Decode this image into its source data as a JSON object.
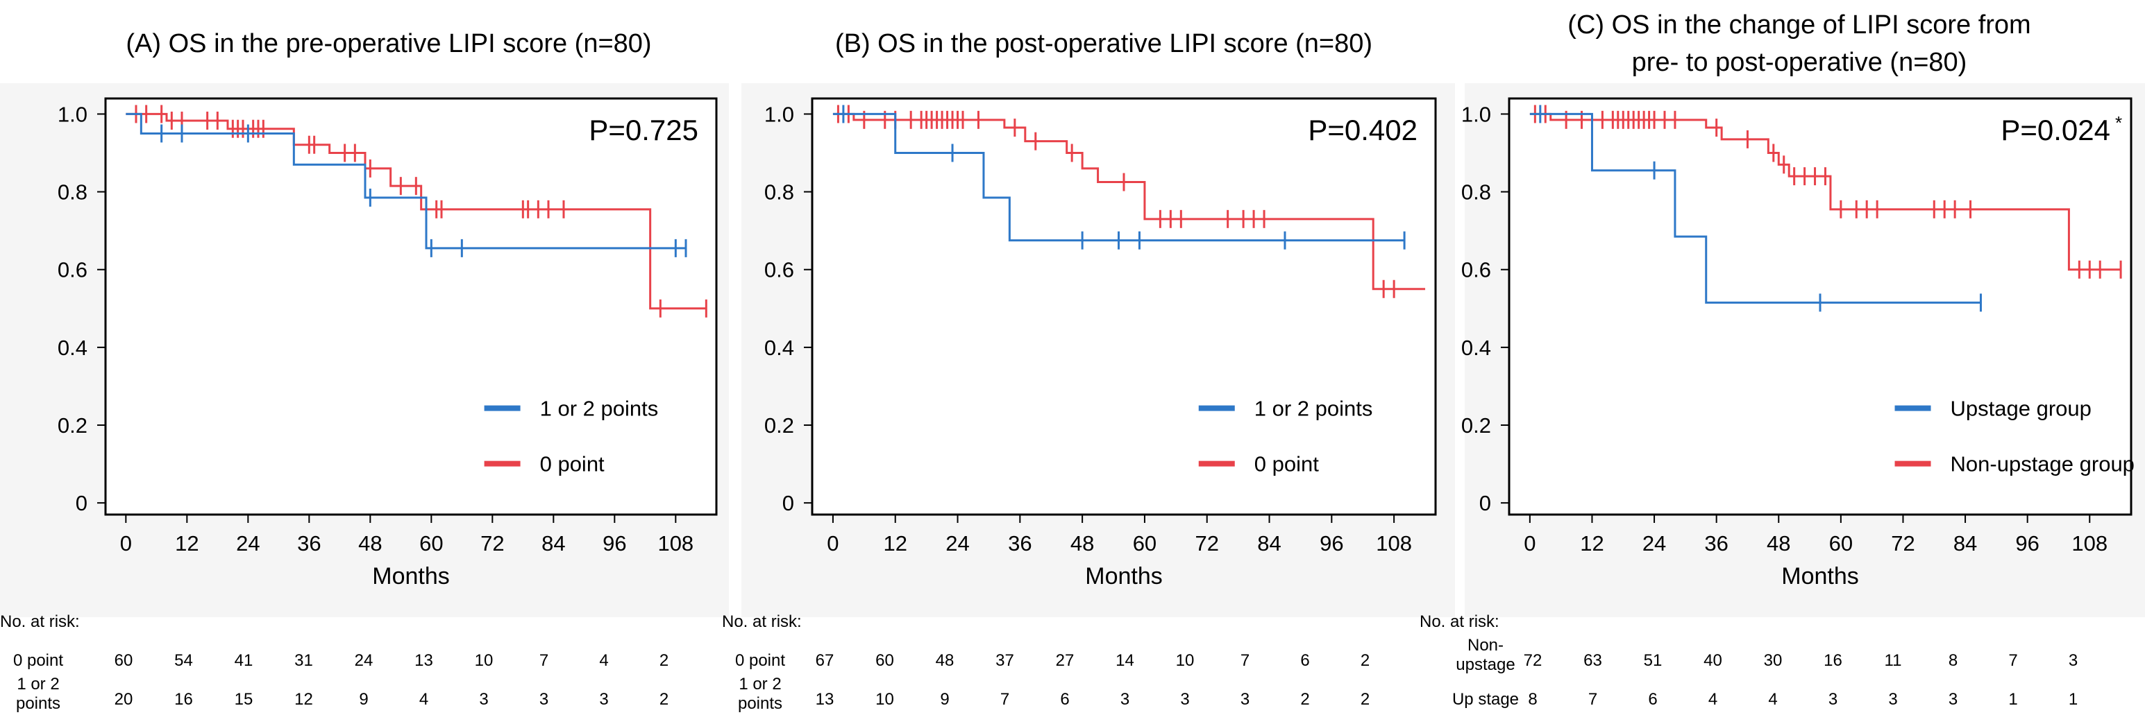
{
  "colors": {
    "red": "#e8424a",
    "blue": "#2e78c8",
    "axis": "#000000",
    "panel_bg": "#f5f5f5"
  },
  "chart_data": [
    {
      "type": "line",
      "title_lines": [
        "(A) OS in the pre-operative LIPI score (n=80)"
      ],
      "p_value": "P=0.725",
      "p_sup": "",
      "xlabel": "Months",
      "ylabel": "",
      "xlim": [
        -4,
        116
      ],
      "ylim": [
        -0.03,
        1.04
      ],
      "xticks": [
        0,
        12,
        24,
        36,
        48,
        60,
        72,
        84,
        96,
        108
      ],
      "yticks": [
        0,
        0.2,
        0.4,
        0.6,
        0.8,
        1.0
      ],
      "ytick_labels": [
        "0",
        "0.2",
        "0.4",
        "0.6",
        "0.8",
        "1.0"
      ],
      "grid": false,
      "legend_position": "lower-right",
      "series": [
        {
          "name": "0 point",
          "color": "red",
          "steps": [
            [
              0,
              1.0
            ],
            [
              8,
              0.983
            ],
            [
              20,
              0.962
            ],
            [
              33,
              0.921
            ],
            [
              40,
              0.9
            ],
            [
              47,
              0.86
            ],
            [
              52,
              0.815
            ],
            [
              58,
              0.755
            ],
            [
              103,
              0.5
            ],
            [
              114,
              0.5
            ]
          ],
          "censors": [
            [
              2,
              1.0
            ],
            [
              4,
              1.0
            ],
            [
              7,
              1.0
            ],
            [
              9,
              0.983
            ],
            [
              11,
              0.983
            ],
            [
              16,
              0.983
            ],
            [
              18,
              0.983
            ],
            [
              21,
              0.962
            ],
            [
              22,
              0.962
            ],
            [
              23,
              0.962
            ],
            [
              25,
              0.962
            ],
            [
              26,
              0.962
            ],
            [
              27,
              0.962
            ],
            [
              36,
              0.921
            ],
            [
              37,
              0.921
            ],
            [
              43,
              0.9
            ],
            [
              45,
              0.9
            ],
            [
              48,
              0.86
            ],
            [
              54,
              0.815
            ],
            [
              57,
              0.815
            ],
            [
              61,
              0.755
            ],
            [
              62,
              0.755
            ],
            [
              78,
              0.755
            ],
            [
              79,
              0.755
            ],
            [
              81,
              0.755
            ],
            [
              83,
              0.755
            ],
            [
              86,
              0.755
            ],
            [
              105,
              0.5
            ],
            [
              114,
              0.5
            ]
          ]
        },
        {
          "name": "1 or 2 points",
          "color": "blue",
          "steps": [
            [
              0,
              1.0
            ],
            [
              3,
              0.95
            ],
            [
              33,
              0.87
            ],
            [
              47,
              0.785
            ],
            [
              59,
              0.655
            ],
            [
              110,
              0.655
            ]
          ],
          "censors": [
            [
              7,
              0.95
            ],
            [
              11,
              0.95
            ],
            [
              24,
              0.95
            ],
            [
              48,
              0.785
            ],
            [
              60,
              0.655
            ],
            [
              66,
              0.655
            ],
            [
              108,
              0.655
            ],
            [
              110,
              0.655
            ]
          ]
        }
      ],
      "risk_table": {
        "header": "No. at risk:",
        "rows": [
          {
            "label_lines": [
              "0 point"
            ],
            "values": [
              "60",
              "54",
              "41",
              "31",
              "24",
              "13",
              "10",
              "7",
              "4",
              "2"
            ]
          },
          {
            "label_lines": [
              "1 or 2",
              "points"
            ],
            "values": [
              "20",
              "16",
              "15",
              "12",
              "9",
              "4",
              "3",
              "3",
              "3",
              "2"
            ]
          }
        ]
      }
    },
    {
      "type": "line",
      "title_lines": [
        "(B) OS in the post-operative LIPI score (n=80)"
      ],
      "p_value": "P=0.402",
      "p_sup": "",
      "xlabel": "Months",
      "ylabel": "",
      "xlim": [
        -4,
        116
      ],
      "ylim": [
        -0.03,
        1.04
      ],
      "xticks": [
        0,
        12,
        24,
        36,
        48,
        60,
        72,
        84,
        96,
        108
      ],
      "yticks": [
        0,
        0.2,
        0.4,
        0.6,
        0.8,
        1.0
      ],
      "ytick_labels": [
        "0",
        "0.2",
        "0.4",
        "0.6",
        "0.8",
        "1.0"
      ],
      "grid": false,
      "legend_position": "lower-right",
      "series": [
        {
          "name": "0 point",
          "color": "red",
          "steps": [
            [
              0,
              1.0
            ],
            [
              4,
              0.985
            ],
            [
              33,
              0.965
            ],
            [
              37,
              0.93
            ],
            [
              45,
              0.9
            ],
            [
              48,
              0.86
            ],
            [
              51,
              0.825
            ],
            [
              60,
              0.73
            ],
            [
              104,
              0.55
            ],
            [
              114,
              0.55
            ]
          ],
          "censors": [
            [
              1,
              1.0
            ],
            [
              3,
              1.0
            ],
            [
              6,
              0.985
            ],
            [
              10,
              0.985
            ],
            [
              12,
              0.985
            ],
            [
              15,
              0.985
            ],
            [
              17,
              0.985
            ],
            [
              18,
              0.985
            ],
            [
              19,
              0.985
            ],
            [
              20,
              0.985
            ],
            [
              21,
              0.985
            ],
            [
              22,
              0.985
            ],
            [
              23,
              0.985
            ],
            [
              24,
              0.985
            ],
            [
              25,
              0.985
            ],
            [
              28,
              0.985
            ],
            [
              35,
              0.965
            ],
            [
              39,
              0.93
            ],
            [
              46,
              0.9
            ],
            [
              56,
              0.825
            ],
            [
              63,
              0.73
            ],
            [
              65,
              0.73
            ],
            [
              67,
              0.73
            ],
            [
              76,
              0.73
            ],
            [
              79,
              0.73
            ],
            [
              81,
              0.73
            ],
            [
              83,
              0.73
            ],
            [
              106,
              0.55
            ],
            [
              108,
              0.55
            ]
          ]
        },
        {
          "name": "1 or 2 points",
          "color": "blue",
          "steps": [
            [
              0,
              1.0
            ],
            [
              12,
              0.9
            ],
            [
              29,
              0.785
            ],
            [
              34,
              0.675
            ],
            [
              110,
              0.675
            ]
          ],
          "censors": [
            [
              2,
              1.0
            ],
            [
              23,
              0.9
            ],
            [
              48,
              0.675
            ],
            [
              55,
              0.675
            ],
            [
              59,
              0.675
            ],
            [
              87,
              0.675
            ],
            [
              110,
              0.675
            ]
          ]
        }
      ],
      "risk_table": {
        "header": "No. at risk:",
        "rows": [
          {
            "label_lines": [
              "0 point"
            ],
            "values": [
              "67",
              "60",
              "48",
              "37",
              "27",
              "14",
              "10",
              "7",
              "6",
              "2"
            ]
          },
          {
            "label_lines": [
              "1 or 2",
              "points"
            ],
            "values": [
              "13",
              "10",
              "9",
              "7",
              "6",
              "3",
              "3",
              "3",
              "2",
              "2"
            ]
          }
        ]
      }
    },
    {
      "type": "line",
      "title_lines": [
        "(C) OS in the change of LIPI score from",
        "pre- to post-operative (n=80)"
      ],
      "p_value": "P=0.024",
      "p_sup": "*",
      "xlabel": "Months",
      "ylabel": "",
      "xlim": [
        -4,
        116
      ],
      "ylim": [
        -0.03,
        1.04
      ],
      "xticks": [
        0,
        12,
        24,
        36,
        48,
        60,
        72,
        84,
        96,
        108
      ],
      "yticks": [
        0,
        0.2,
        0.4,
        0.6,
        0.8,
        1.0
      ],
      "ytick_labels": [
        "0",
        "0.2",
        "0.4",
        "0.6",
        "0.8",
        "1.0"
      ],
      "grid": false,
      "legend_position": "lower-right",
      "series": [
        {
          "name": "Non-upstage group",
          "color": "red",
          "steps": [
            [
              0,
              1.0
            ],
            [
              4,
              0.985
            ],
            [
              34,
              0.965
            ],
            [
              37,
              0.935
            ],
            [
              46,
              0.9
            ],
            [
              48,
              0.87
            ],
            [
              50,
              0.84
            ],
            [
              58,
              0.755
            ],
            [
              104,
              0.6
            ],
            [
              114,
              0.6
            ]
          ],
          "censors": [
            [
              1,
              1.0
            ],
            [
              3,
              1.0
            ],
            [
              7,
              0.985
            ],
            [
              10,
              0.985
            ],
            [
              14,
              0.985
            ],
            [
              16,
              0.985
            ],
            [
              17,
              0.985
            ],
            [
              18,
              0.985
            ],
            [
              19,
              0.985
            ],
            [
              20,
              0.985
            ],
            [
              21,
              0.985
            ],
            [
              22,
              0.985
            ],
            [
              23,
              0.985
            ],
            [
              24,
              0.985
            ],
            [
              26,
              0.985
            ],
            [
              28,
              0.985
            ],
            [
              36,
              0.965
            ],
            [
              42,
              0.935
            ],
            [
              47,
              0.9
            ],
            [
              49,
              0.87
            ],
            [
              51,
              0.84
            ],
            [
              53,
              0.84
            ],
            [
              55,
              0.84
            ],
            [
              57,
              0.84
            ],
            [
              60,
              0.755
            ],
            [
              63,
              0.755
            ],
            [
              65,
              0.755
            ],
            [
              67,
              0.755
            ],
            [
              78,
              0.755
            ],
            [
              80,
              0.755
            ],
            [
              82,
              0.755
            ],
            [
              85,
              0.755
            ],
            [
              106,
              0.6
            ],
            [
              108,
              0.6
            ],
            [
              110,
              0.6
            ],
            [
              114,
              0.6
            ]
          ]
        },
        {
          "name": "Upstage group",
          "color": "blue",
          "steps": [
            [
              0,
              1.0
            ],
            [
              12,
              0.855
            ],
            [
              28,
              0.685
            ],
            [
              34,
              0.515
            ],
            [
              87,
              0.515
            ]
          ],
          "censors": [
            [
              2,
              1.0
            ],
            [
              24,
              0.855
            ],
            [
              56,
              0.515
            ],
            [
              87,
              0.515
            ]
          ]
        }
      ],
      "risk_table": {
        "header": "No. at risk:",
        "rows": [
          {
            "label_lines": [
              "Non-",
              "upstage"
            ],
            "values": [
              "72",
              "63",
              "51",
              "40",
              "30",
              "16",
              "11",
              "8",
              "7",
              "3"
            ]
          },
          {
            "label_lines": [
              "Up stage"
            ],
            "values": [
              "8",
              "7",
              "6",
              "4",
              "4",
              "3",
              "3",
              "3",
              "1",
              "1"
            ]
          }
        ]
      }
    }
  ]
}
